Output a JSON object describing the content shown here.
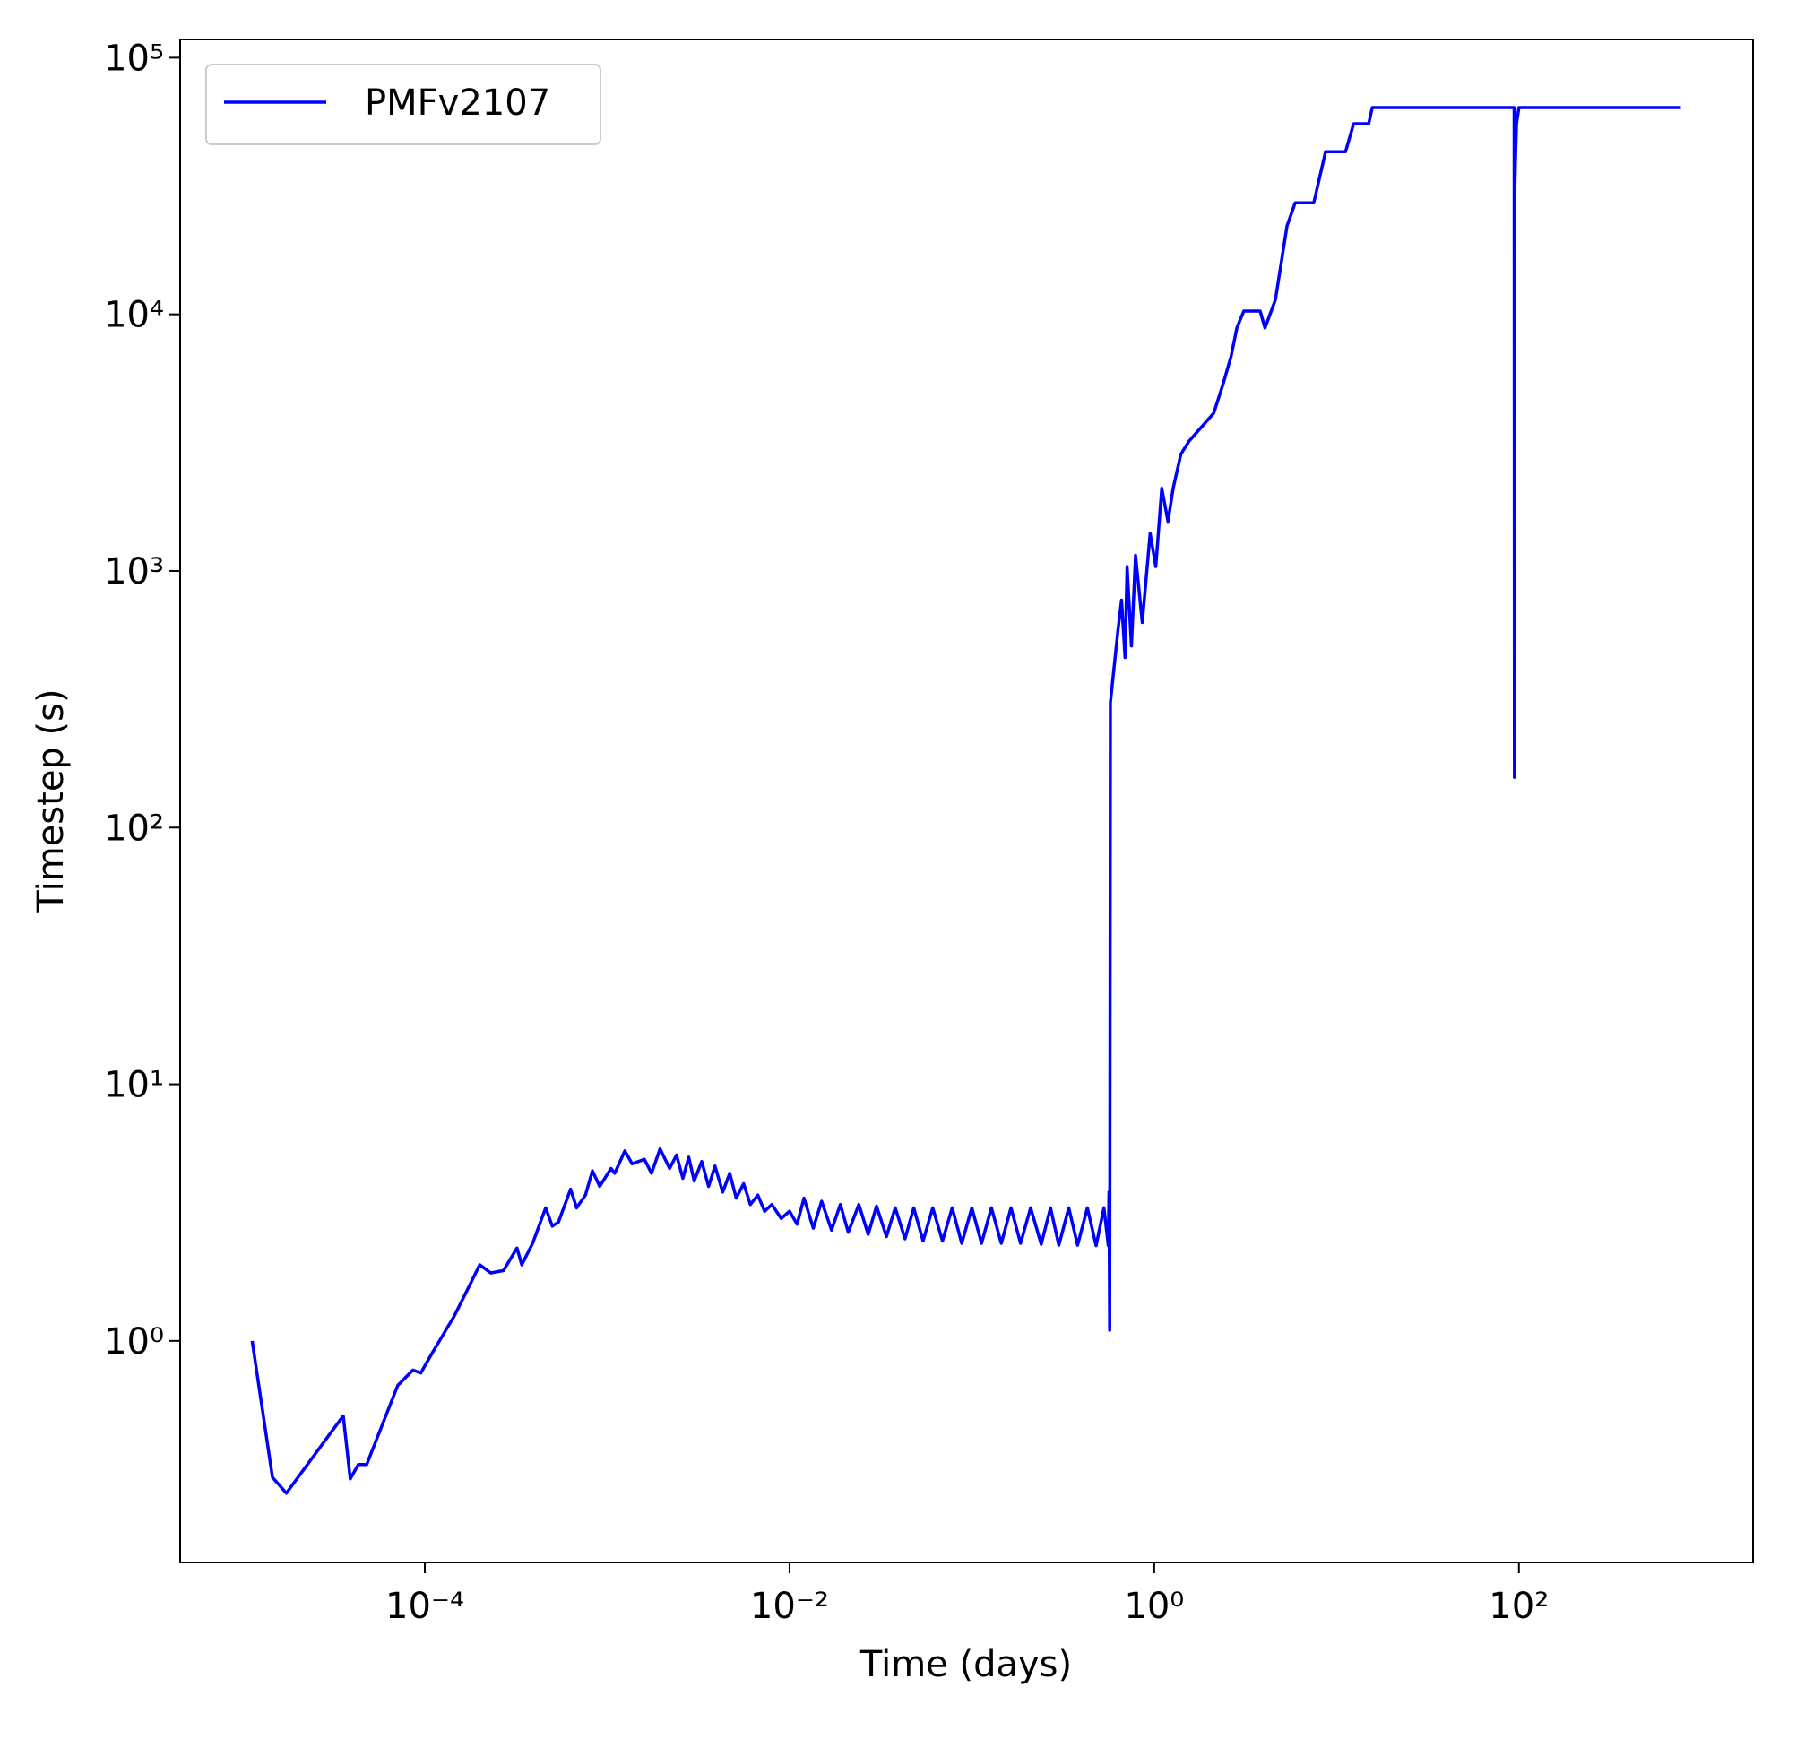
{
  "chart_data": {
    "type": "line",
    "xlabel": "Time (days)",
    "ylabel": "Timestep (s)",
    "xscale": "log",
    "yscale": "log",
    "xlim": [
      4.55e-06,
      1923
    ],
    "ylim": [
      0.137,
      117800
    ],
    "xticks": [
      {
        "value": 0.0001,
        "label": "10⁻⁴"
      },
      {
        "value": 0.01,
        "label": "10⁻²"
      },
      {
        "value": 1,
        "label": "10⁰"
      },
      {
        "value": 100,
        "label": "10²"
      }
    ],
    "yticks": [
      {
        "value": 1,
        "label": "10⁰"
      },
      {
        "value": 10,
        "label": "10¹"
      },
      {
        "value": 100,
        "label": "10²"
      },
      {
        "value": 1000,
        "label": "10³"
      },
      {
        "value": 10000,
        "label": "10⁴"
      },
      {
        "value": 100000,
        "label": "10⁵"
      }
    ],
    "legend": "upper left",
    "x": [
      1.13e-05,
      1.46e-05,
      1.74e-05,
      3.08e-05,
      3.57e-05,
      3.9e-05,
      4.32e-05,
      4.8e-05,
      7.1e-05,
      8.6e-05,
      9.5e-05,
      0.00011,
      0.000145,
      0.00018,
      0.0002,
      0.00023,
      0.00027,
      0.00032,
      0.00034,
      0.00039,
      0.00046,
      0.0005,
      0.00054,
      0.00063,
      0.00068,
      0.00076,
      0.00083,
      0.00091,
      0.00105,
      0.0011,
      0.00125,
      0.00137,
      0.0016,
      0.00175,
      0.00195,
      0.0022,
      0.0024,
      0.0026,
      0.0028,
      0.003,
      0.0033,
      0.0036,
      0.0039,
      0.0043,
      0.0047,
      0.0051,
      0.0056,
      0.0061,
      0.0067,
      0.0073,
      0.008,
      0.009,
      0.01,
      0.011,
      0.012,
      0.0135,
      0.015,
      0.017,
      0.019,
      0.021,
      0.024,
      0.027,
      0.03,
      0.034,
      0.038,
      0.043,
      0.048,
      0.054,
      0.061,
      0.069,
      0.078,
      0.088,
      0.1,
      0.113,
      0.128,
      0.145,
      0.164,
      0.185,
      0.21,
      0.24,
      0.27,
      0.3,
      0.34,
      0.38,
      0.43,
      0.48,
      0.53,
      0.56,
      0.565,
      0.57,
      0.575,
      0.634,
      0.662,
      0.692,
      0.71,
      0.75,
      0.79,
      0.86,
      0.95,
      1.02,
      1.1,
      1.19,
      1.27,
      1.4,
      1.55,
      1.67,
      2.12,
      2.38,
      2.64,
      2.84,
      3.1,
      3.81,
      4.05,
      4.62,
      5.35,
      5.93,
      7.5,
      8.7,
      11.2,
      12.4,
      15.0,
      15.7,
      94.2,
      94.5,
      94.9,
      95.8,
      97,
      100,
      773
    ],
    "series": [
      {
        "name": "PMFv2107",
        "color": "#0000ff",
        "values": [
          1.0,
          0.294,
          0.255,
          0.443,
          0.51,
          0.29,
          0.33,
          0.33,
          0.67,
          0.77,
          0.75,
          0.9,
          1.25,
          1.7,
          1.98,
          1.84,
          1.88,
          2.3,
          1.98,
          2.4,
          3.3,
          2.8,
          2.9,
          3.9,
          3.3,
          3.7,
          4.6,
          4.0,
          4.7,
          4.5,
          5.5,
          4.9,
          5.1,
          4.5,
          5.6,
          4.7,
          5.3,
          4.3,
          5.2,
          4.2,
          5.0,
          4.0,
          4.8,
          3.8,
          4.5,
          3.6,
          4.1,
          3.4,
          3.7,
          3.2,
          3.4,
          3.0,
          3.2,
          2.85,
          3.6,
          2.75,
          3.5,
          2.7,
          3.4,
          2.65,
          3.4,
          2.6,
          3.35,
          2.55,
          3.3,
          2.5,
          3.3,
          2.45,
          3.3,
          2.45,
          3.3,
          2.4,
          3.3,
          2.4,
          3.3,
          2.4,
          3.3,
          2.4,
          3.3,
          2.38,
          3.3,
          2.36,
          3.3,
          2.36,
          3.3,
          2.35,
          3.3,
          2.35,
          3.8,
          1.1,
          307,
          595,
          770,
          460,
          1040,
          510,
          1150,
          630,
          1400,
          1040,
          2100,
          1560,
          2100,
          2850,
          3200,
          3400,
          4120,
          5320,
          6860,
          8850,
          10300,
          10300,
          8850,
          11400,
          22100,
          27200,
          27200,
          43000,
          43000,
          55300,
          55300,
          63900,
          63900,
          157,
          30100,
          40800,
          55300,
          63900,
          63900
        ]
      }
    ]
  }
}
